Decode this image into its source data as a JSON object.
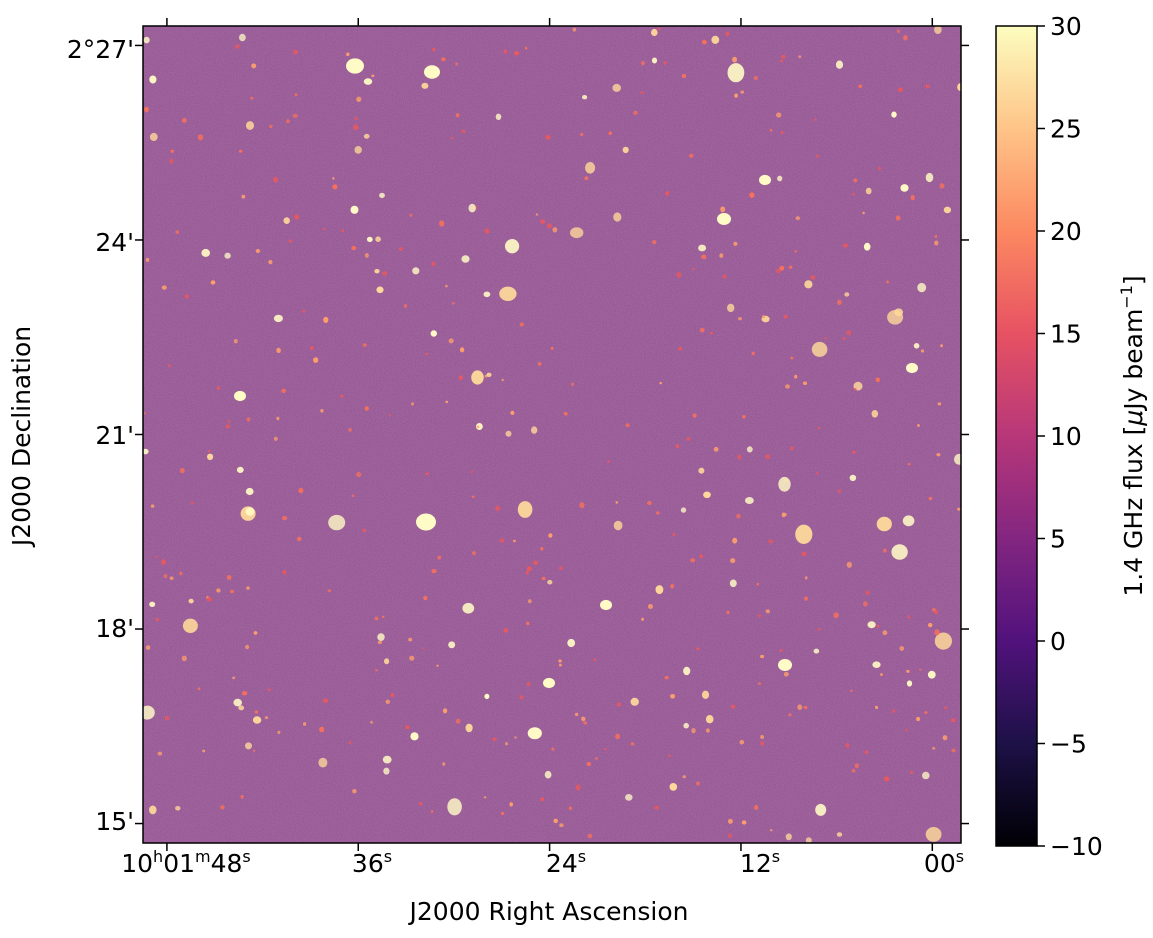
{
  "chart_data": {
    "type": "heatmap",
    "title": "",
    "xlabel": "J2000 Right Ascension",
    "ylabel": "J2000 Declination",
    "x_ticks": [
      {
        "value_s": 108,
        "main": "10",
        "sup1": "h",
        "mid": "01",
        "sup2": "m",
        "sec": "48",
        "sup3": "s"
      },
      {
        "value_s": 96,
        "sec": "36",
        "sup3": "s"
      },
      {
        "value_s": 84,
        "sec": "24",
        "sup3": "s"
      },
      {
        "value_s": 72,
        "sec": "12",
        "sup3": "s"
      },
      {
        "value_s": 60,
        "sec": "00",
        "sup3": "s"
      }
    ],
    "xlim_seconds": [
      109.5,
      58.2
    ],
    "y_ticks": [
      {
        "value_arcmin": 27,
        "label": "2°27'"
      },
      {
        "value_arcmin": 24,
        "label": "24'"
      },
      {
        "value_arcmin": 21,
        "label": "21'"
      },
      {
        "value_arcmin": 18,
        "label": "18'"
      },
      {
        "value_arcmin": 15,
        "label": "15'"
      }
    ],
    "ylim_arcmin": [
      14.7,
      27.3
    ],
    "colorbar": {
      "label": "1.4 GHz flux [μJy beam⁻¹]",
      "label_main": "1.4 GHz flux [",
      "label_mu": "μ",
      "label_mid": "Jy beam",
      "label_sup": "−1",
      "label_end": "]",
      "range": [
        -10,
        30
      ],
      "ticks": [
        "30",
        "25",
        "20",
        "15",
        "10",
        "5",
        "0",
        "−5",
        "−10"
      ],
      "tick_values": [
        30,
        25,
        20,
        15,
        10,
        5,
        0,
        -5,
        -10
      ],
      "colormap": "magma"
    },
    "background_flux_mean": 0,
    "colors": {
      "background": "#7a3a7c",
      "bright_source": "#fffbc6",
      "mid_source": "#fd9e6c"
    }
  }
}
